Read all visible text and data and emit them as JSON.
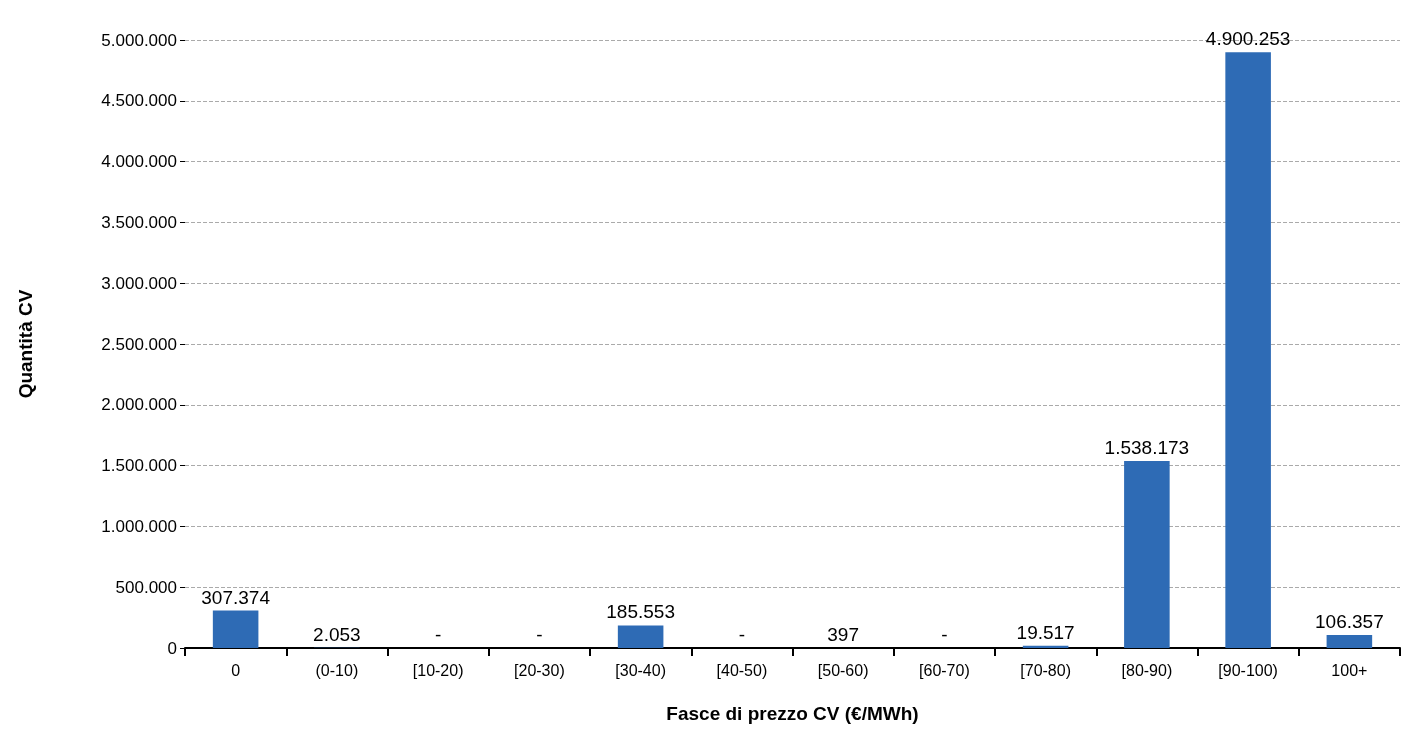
{
  "chart_data": {
    "type": "bar",
    "xlabel": "Fasce di prezzo CV (€/MWh)",
    "ylabel": "Quantità CV",
    "categories": [
      "0",
      "(0-10)",
      "[10-20)",
      "[20-30)",
      "[30-40)",
      "[40-50)",
      "[50-60)",
      "[60-70)",
      "[70-80)",
      "[80-90)",
      "[90-100)",
      "100+"
    ],
    "values": [
      307374,
      2053,
      0,
      0,
      185553,
      0,
      397,
      0,
      19517,
      1538173,
      4900253,
      106357
    ],
    "value_labels": [
      "307.374",
      "2.053",
      "-",
      "-",
      "185.553",
      "-",
      "397",
      "-",
      "19.517",
      "1.538.173",
      "4.900.253",
      "106.357"
    ],
    "color": "#2e6bb5",
    "ylim": [
      0,
      5000000
    ],
    "yticks": [
      0,
      {
        "value": 500000,
        "label": "500.000"
      },
      {
        "value": 1000000,
        "label": "1.000.000"
      },
      {
        "value": 1500000,
        "label": "1.500.000"
      },
      {
        "value": 2000000,
        "label": "2.000.000"
      },
      {
        "value": 2500000,
        "label": "2.500.000"
      },
      {
        "value": 3000000,
        "label": "3.000.000"
      },
      {
        "value": 3500000,
        "label": "3.500.000"
      },
      {
        "value": 4000000,
        "label": "4.000.000"
      },
      {
        "value": 4500000,
        "label": "4.500.000"
      },
      {
        "value": 5000000,
        "label": "5.000.000"
      }
    ],
    "grid": "y"
  }
}
